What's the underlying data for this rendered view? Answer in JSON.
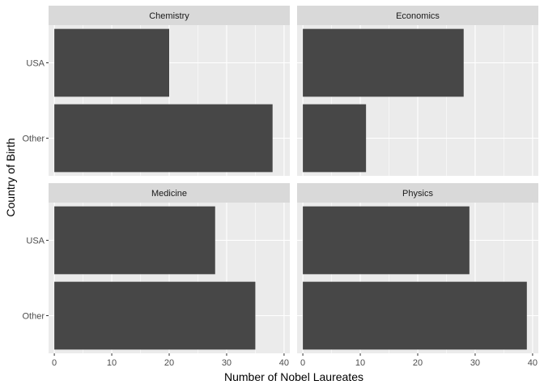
{
  "chart_data": {
    "type": "bar",
    "orientation": "horizontal",
    "facet_layout": "2x2",
    "xlabel": "Number of Nobel Laureates",
    "ylabel": "Country of Birth",
    "categories": [
      "USA",
      "Other"
    ],
    "xlim": [
      -1,
      41
    ],
    "x_ticks": [
      0,
      10,
      20,
      30,
      40
    ],
    "grid": true,
    "bar_color": "#474747",
    "panel_background": "#ebebeb",
    "strip_background": "#d9d9d9",
    "panels": [
      {
        "title": "Chemistry",
        "values": [
          20,
          38
        ]
      },
      {
        "title": "Economics",
        "values": [
          28,
          11
        ]
      },
      {
        "title": "Medicine",
        "values": [
          28,
          35
        ]
      },
      {
        "title": "Physics",
        "values": [
          29,
          39
        ]
      }
    ]
  }
}
